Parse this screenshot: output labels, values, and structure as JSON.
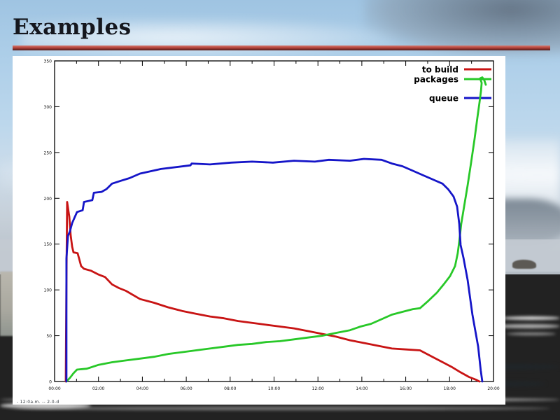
{
  "slide": {
    "title": "Examples",
    "footer_caption": "- 12:0a.m. --  2-0-d"
  },
  "chart_data": {
    "type": "line",
    "title": "",
    "grid": false,
    "legend_position": "top-right-inside",
    "x_axis": {
      "tick_hours": [
        0,
        2,
        4,
        6,
        8,
        10,
        12,
        14,
        16,
        18,
        20
      ],
      "tick_labels": [
        "00:00",
        "02:00",
        "04:00",
        "06:00",
        "08:00",
        "10:00",
        "12:00",
        "14:00",
        "16:00",
        "18:00",
        "20:00"
      ],
      "range": [
        0,
        20
      ]
    },
    "y_axis": {
      "tick_values": [
        0,
        50,
        100,
        150,
        200,
        250,
        300,
        350
      ],
      "tick_labels": [
        "0",
        "50",
        "100",
        "150",
        "200",
        "250",
        "300",
        "350"
      ],
      "range": [
        0,
        350
      ]
    },
    "legend": [
      {
        "label": "to build",
        "color": "#c81414"
      },
      {
        "label": "packages",
        "color": "#28c828"
      },
      {
        "label": "queue",
        "color": "#1515c8"
      }
    ],
    "series": [
      {
        "name": "to build",
        "color": "#c81414",
        "points": [
          [
            0.51,
            0
          ],
          [
            0.54,
            110
          ],
          [
            0.57,
            196
          ],
          [
            0.63,
            186
          ],
          [
            0.67,
            180
          ],
          [
            0.73,
            160
          ],
          [
            0.8,
            147
          ],
          [
            0.86,
            141
          ],
          [
            1.05,
            140
          ],
          [
            1.12,
            134
          ],
          [
            1.21,
            126
          ],
          [
            1.34,
            123
          ],
          [
            1.66,
            121
          ],
          [
            1.98,
            117
          ],
          [
            2.3,
            114
          ],
          [
            2.62,
            106
          ],
          [
            2.93,
            102
          ],
          [
            3.25,
            99
          ],
          [
            3.89,
            90
          ],
          [
            4.53,
            86
          ],
          [
            5.17,
            81
          ],
          [
            5.81,
            77
          ],
          [
            6.44,
            74
          ],
          [
            7.08,
            71
          ],
          [
            7.72,
            69
          ],
          [
            8.36,
            66
          ],
          [
            9.0,
            64
          ],
          [
            9.63,
            62
          ],
          [
            10.27,
            60
          ],
          [
            10.91,
            58
          ],
          [
            11.55,
            55
          ],
          [
            12.19,
            52
          ],
          [
            12.82,
            49
          ],
          [
            13.46,
            45
          ],
          [
            14.1,
            42
          ],
          [
            14.74,
            39
          ],
          [
            15.37,
            36
          ],
          [
            16.01,
            35
          ],
          [
            16.65,
            34
          ],
          [
            17.13,
            28
          ],
          [
            17.61,
            22
          ],
          [
            18.09,
            16
          ],
          [
            18.5,
            10
          ],
          [
            18.88,
            5
          ],
          [
            19.2,
            2
          ],
          [
            19.36,
            0
          ]
        ]
      },
      {
        "name": "packages",
        "color": "#28c828",
        "points": [
          [
            0.54,
            0
          ],
          [
            0.7,
            4
          ],
          [
            0.86,
            9
          ],
          [
            1.02,
            13
          ],
          [
            1.47,
            14
          ],
          [
            1.98,
            18
          ],
          [
            2.62,
            21
          ],
          [
            3.25,
            23
          ],
          [
            3.89,
            25
          ],
          [
            4.53,
            27
          ],
          [
            5.17,
            30
          ],
          [
            5.81,
            32
          ],
          [
            6.44,
            34
          ],
          [
            7.08,
            36
          ],
          [
            7.72,
            38
          ],
          [
            8.36,
            40
          ],
          [
            9.0,
            41
          ],
          [
            9.63,
            43
          ],
          [
            10.27,
            44
          ],
          [
            10.91,
            46
          ],
          [
            11.55,
            48
          ],
          [
            12.19,
            50
          ],
          [
            12.82,
            53
          ],
          [
            13.46,
            56
          ],
          [
            13.94,
            60
          ],
          [
            14.42,
            63
          ],
          [
            14.9,
            68
          ],
          [
            15.37,
            73
          ],
          [
            15.85,
            76
          ],
          [
            16.33,
            79
          ],
          [
            16.65,
            80
          ],
          [
            17.03,
            88
          ],
          [
            17.42,
            97
          ],
          [
            17.73,
            106
          ],
          [
            18.02,
            115
          ],
          [
            18.25,
            126
          ],
          [
            18.37,
            140
          ],
          [
            18.44,
            153
          ],
          [
            18.53,
            172
          ],
          [
            18.66,
            191
          ],
          [
            18.82,
            214
          ],
          [
            18.98,
            239
          ],
          [
            19.14,
            265
          ],
          [
            19.26,
            287
          ],
          [
            19.36,
            304
          ],
          [
            19.43,
            317
          ],
          [
            19.46,
            326
          ],
          [
            19.39,
            331
          ],
          [
            19.49,
            332
          ],
          [
            19.58,
            329
          ],
          [
            19.65,
            324
          ]
        ]
      },
      {
        "name": "queue",
        "color": "#1515c8",
        "points": [
          [
            0.54,
            0
          ],
          [
            0.54,
            134
          ],
          [
            0.61,
            159
          ],
          [
            0.7,
            164
          ],
          [
            0.8,
            173
          ],
          [
            1.02,
            185
          ],
          [
            1.28,
            187
          ],
          [
            1.34,
            196
          ],
          [
            1.72,
            198
          ],
          [
            1.79,
            206
          ],
          [
            2.14,
            207
          ],
          [
            2.36,
            210
          ],
          [
            2.62,
            216
          ],
          [
            3.0,
            219
          ],
          [
            3.41,
            222
          ],
          [
            3.89,
            227
          ],
          [
            4.85,
            232
          ],
          [
            6.19,
            236
          ],
          [
            6.25,
            238
          ],
          [
            7.08,
            237
          ],
          [
            8.04,
            239
          ],
          [
            9.0,
            240
          ],
          [
            9.95,
            239
          ],
          [
            10.91,
            241
          ],
          [
            11.86,
            240
          ],
          [
            12.5,
            242
          ],
          [
            13.46,
            241
          ],
          [
            14.1,
            243
          ],
          [
            14.9,
            242
          ],
          [
            15.37,
            238
          ],
          [
            15.85,
            235
          ],
          [
            16.33,
            230
          ],
          [
            16.81,
            225
          ],
          [
            17.29,
            220
          ],
          [
            17.67,
            216
          ],
          [
            17.93,
            210
          ],
          [
            18.18,
            202
          ],
          [
            18.34,
            191
          ],
          [
            18.44,
            172
          ],
          [
            18.5,
            149
          ],
          [
            18.63,
            135
          ],
          [
            18.82,
            111
          ],
          [
            19.04,
            73
          ],
          [
            19.3,
            38
          ],
          [
            19.42,
            12
          ],
          [
            19.49,
            0
          ]
        ]
      }
    ]
  }
}
